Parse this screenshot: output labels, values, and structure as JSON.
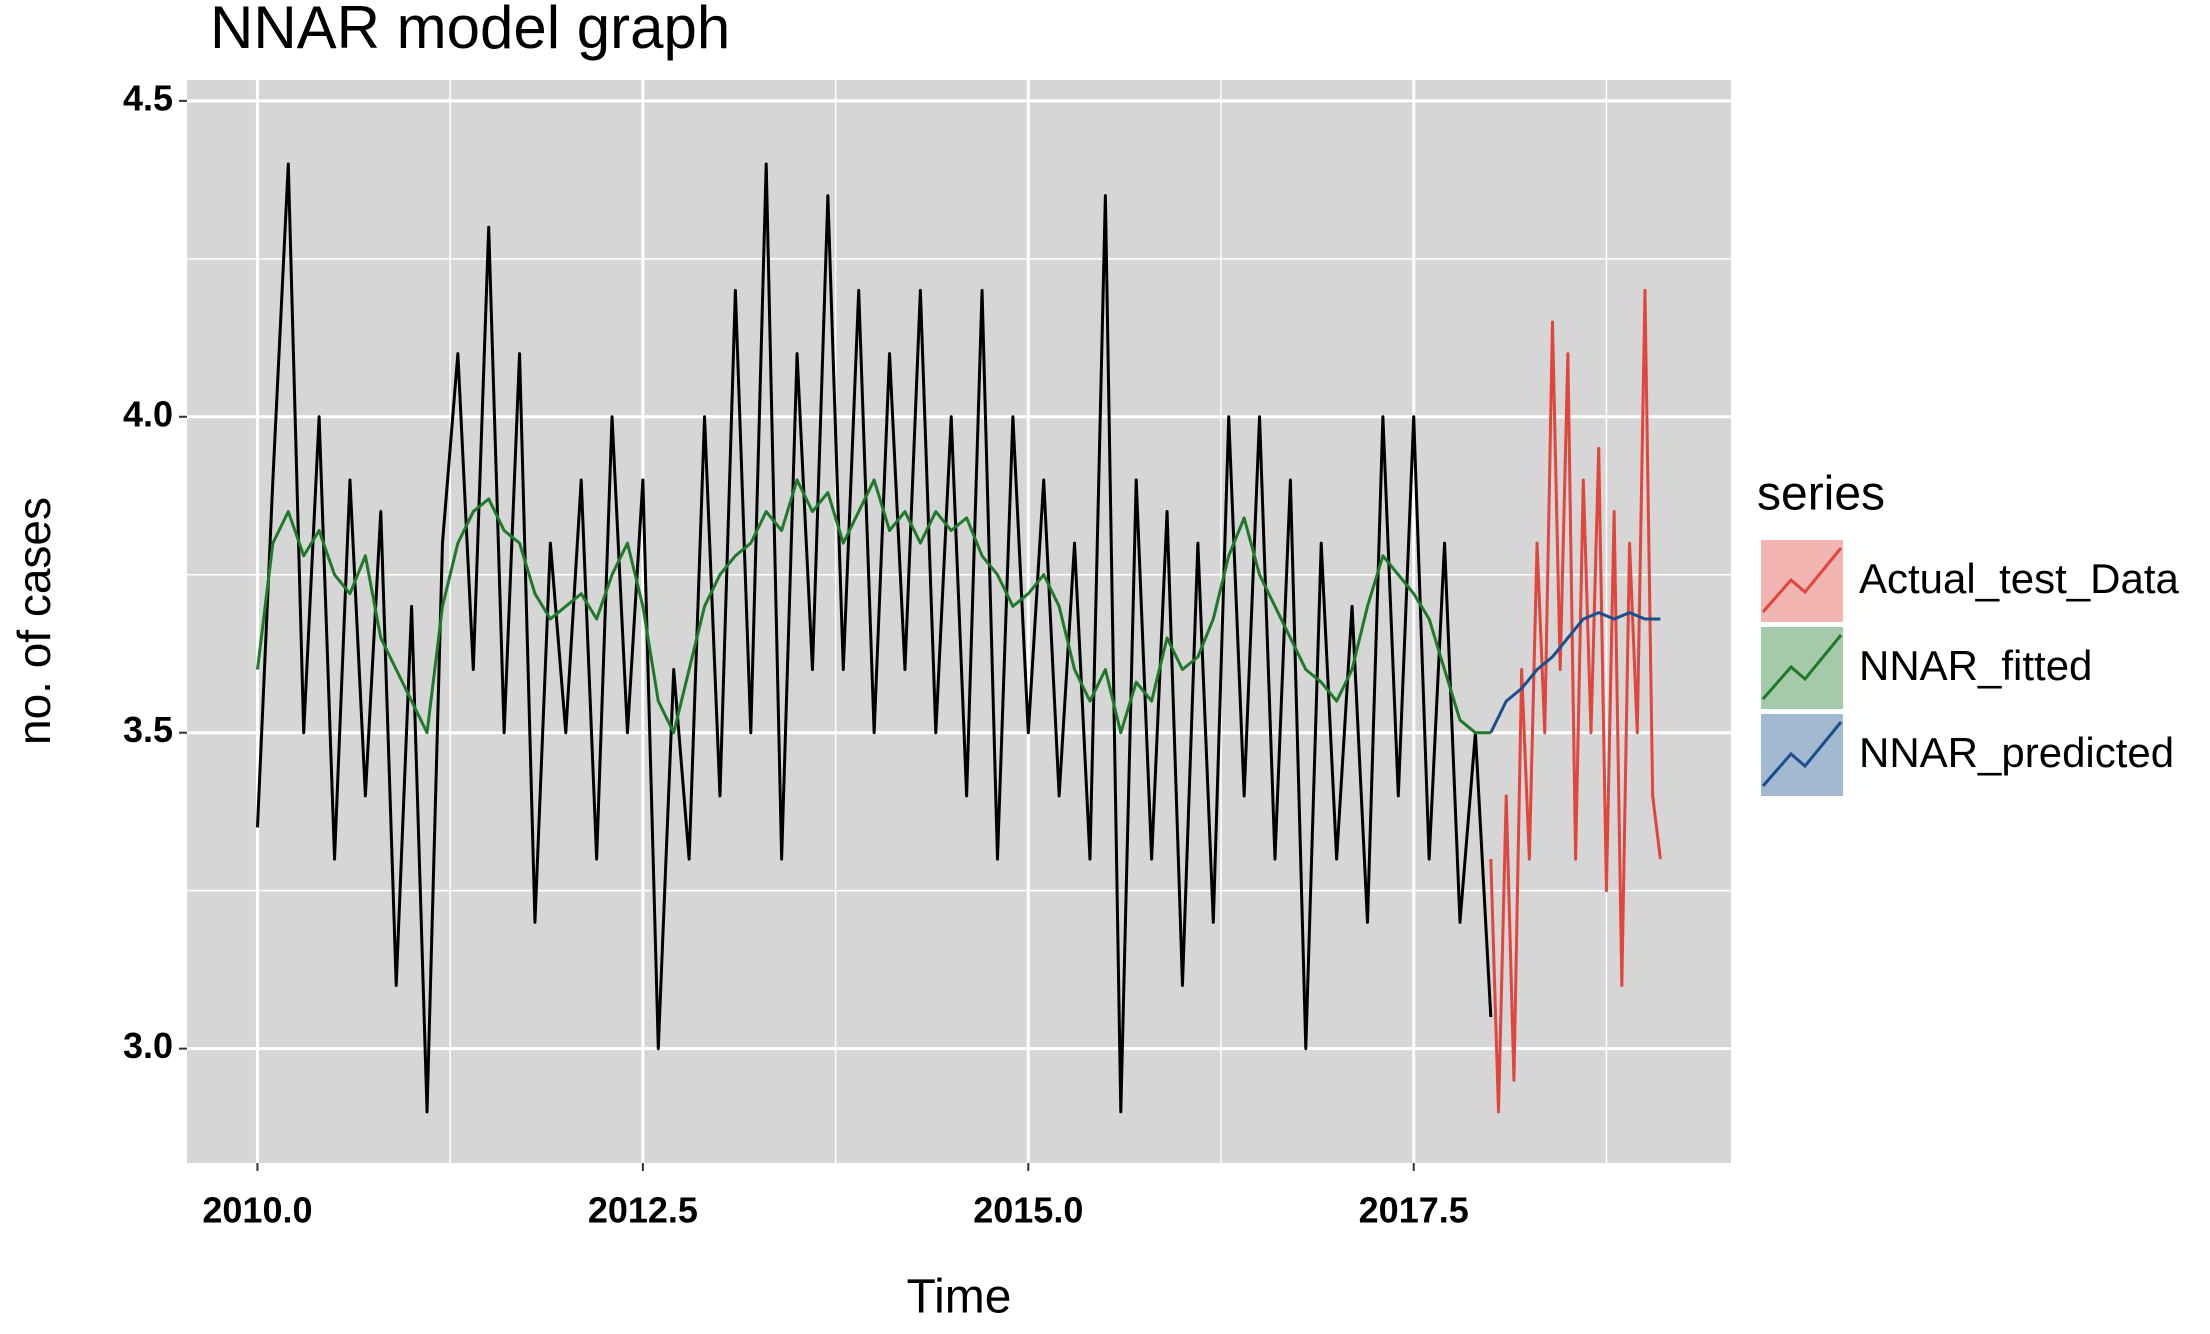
{
  "chart_data": {
    "type": "line",
    "title": "NNAR model graph",
    "x_label": "Time",
    "y_label": "no. of cases",
    "legend_title": "series",
    "legend_position": "right",
    "grid": true,
    "background": "#d6d6d6",
    "xlim": [
      2009.543,
      2019.558
    ],
    "ylim": [
      2.819,
      4.533
    ],
    "xticks": [
      {
        "value": 2010,
        "label": "2010.0"
      },
      2012.5,
      {
        "value": 2015,
        "label": "2015.0"
      },
      2017.5
    ],
    "yticks": [
      {
        "value": 3,
        "label": "3.0"
      },
      3.5,
      {
        "value": 4,
        "label": "4.0"
      },
      4.5
    ],
    "series": [
      {
        "color": "#000000",
        "x": [
          2010.0,
          2010.1,
          2010.2,
          2010.3,
          2010.4,
          2010.5,
          2010.6,
          2010.7,
          2010.8,
          2010.9,
          2011.0,
          2011.1,
          2011.2,
          2011.3,
          2011.4,
          2011.5,
          2011.6,
          2011.7,
          2011.8,
          2011.9,
          2012.0,
          2012.1,
          2012.2,
          2012.3,
          2012.4,
          2012.5,
          2012.6,
          2012.7,
          2012.8,
          2012.9,
          2013.0,
          2013.1,
          2013.2,
          2013.3,
          2013.4,
          2013.5,
          2013.6,
          2013.7,
          2013.8,
          2013.9,
          2014.0,
          2014.1,
          2014.2,
          2014.3,
          2014.4,
          2014.5,
          2014.6,
          2014.7,
          2014.8,
          2014.9,
          2015.0,
          2015.1,
          2015.2,
          2015.3,
          2015.4,
          2015.5,
          2015.6,
          2015.7,
          2015.8,
          2015.9,
          2016.0,
          2016.1,
          2016.2,
          2016.3,
          2016.4,
          2016.5,
          2016.6,
          2016.7,
          2016.8,
          2016.9,
          2017.0,
          2017.1,
          2017.2,
          2017.3,
          2017.4,
          2017.5,
          2017.6,
          2017.7,
          2017.8,
          2017.9,
          2018.0
        ],
        "values": [
          3.35,
          3.9,
          4.4,
          3.5,
          4.0,
          3.3,
          3.9,
          3.4,
          3.85,
          3.1,
          3.7,
          2.9,
          3.8,
          4.1,
          3.6,
          4.3,
          3.5,
          4.1,
          3.2,
          3.8,
          3.5,
          3.9,
          3.3,
          4.0,
          3.5,
          3.9,
          3.0,
          3.6,
          3.3,
          4.0,
          3.4,
          4.2,
          3.5,
          4.4,
          3.3,
          4.1,
          3.6,
          4.35,
          3.6,
          4.2,
          3.5,
          4.1,
          3.6,
          4.2,
          3.5,
          4.0,
          3.4,
          4.2,
          3.3,
          4.0,
          3.5,
          3.9,
          3.4,
          3.8,
          3.3,
          4.35,
          2.9,
          3.9,
          3.3,
          3.85,
          3.1,
          3.8,
          3.2,
          4.0,
          3.4,
          4.0,
          3.3,
          3.9,
          3.0,
          3.8,
          3.3,
          3.7,
          3.2,
          4.0,
          3.4,
          4.0,
          3.3,
          3.8,
          3.2,
          3.5,
          3.05
        ]
      },
      {
        "name": "Actual_test_Data",
        "color": "#e0463c",
        "x": [
          2018.0,
          2018.05,
          2018.1,
          2018.15,
          2018.2,
          2018.25,
          2018.3,
          2018.35,
          2018.4,
          2018.45,
          2018.5,
          2018.55,
          2018.6,
          2018.65,
          2018.7,
          2018.75,
          2018.8,
          2018.85,
          2018.9,
          2018.95,
          2019.0,
          2019.05,
          2019.1
        ],
        "values": [
          3.3,
          2.9,
          3.4,
          2.95,
          3.6,
          3.3,
          3.8,
          3.5,
          4.15,
          3.6,
          4.1,
          3.3,
          3.9,
          3.5,
          3.95,
          3.25,
          3.85,
          3.1,
          3.8,
          3.5,
          4.2,
          3.4,
          3.3
        ]
      },
      {
        "name": "NNAR_fitted",
        "color": "#1e7a2a",
        "x": [
          2010.0,
          2010.1,
          2010.2,
          2010.3,
          2010.4,
          2010.5,
          2010.6,
          2010.7,
          2010.8,
          2010.9,
          2011.0,
          2011.1,
          2011.2,
          2011.3,
          2011.4,
          2011.5,
          2011.6,
          2011.7,
          2011.8,
          2011.9,
          2012.0,
          2012.1,
          2012.2,
          2012.3,
          2012.4,
          2012.5,
          2012.6,
          2012.7,
          2012.8,
          2012.9,
          2013.0,
          2013.1,
          2013.2,
          2013.3,
          2013.4,
          2013.5,
          2013.6,
          2013.7,
          2013.8,
          2013.9,
          2014.0,
          2014.1,
          2014.2,
          2014.3,
          2014.4,
          2014.5,
          2014.6,
          2014.7,
          2014.8,
          2014.9,
          2015.0,
          2015.1,
          2015.2,
          2015.3,
          2015.4,
          2015.5,
          2015.6,
          2015.7,
          2015.8,
          2015.9,
          2016.0,
          2016.1,
          2016.2,
          2016.3,
          2016.4,
          2016.5,
          2016.6,
          2016.7,
          2016.8,
          2016.9,
          2017.0,
          2017.1,
          2017.2,
          2017.3,
          2017.4,
          2017.5,
          2017.6,
          2017.7,
          2017.8,
          2017.9,
          2018.0
        ],
        "values": [
          3.6,
          3.8,
          3.85,
          3.78,
          3.82,
          3.75,
          3.72,
          3.78,
          3.65,
          3.6,
          3.55,
          3.5,
          3.7,
          3.8,
          3.85,
          3.87,
          3.82,
          3.8,
          3.72,
          3.68,
          3.7,
          3.72,
          3.68,
          3.75,
          3.8,
          3.7,
          3.55,
          3.5,
          3.6,
          3.7,
          3.75,
          3.78,
          3.8,
          3.85,
          3.82,
          3.9,
          3.85,
          3.88,
          3.8,
          3.85,
          3.9,
          3.82,
          3.85,
          3.8,
          3.85,
          3.82,
          3.84,
          3.78,
          3.75,
          3.7,
          3.72,
          3.75,
          3.7,
          3.6,
          3.55,
          3.6,
          3.5,
          3.58,
          3.55,
          3.65,
          3.6,
          3.62,
          3.68,
          3.78,
          3.84,
          3.75,
          3.7,
          3.65,
          3.6,
          3.58,
          3.55,
          3.6,
          3.7,
          3.78,
          3.75,
          3.72,
          3.68,
          3.6,
          3.52,
          3.5,
          3.5
        ]
      },
      {
        "name": "NNAR_predicted",
        "color": "#1a4e8c",
        "x": [
          2018.0,
          2018.1,
          2018.2,
          2018.3,
          2018.4,
          2018.5,
          2018.6,
          2018.7,
          2018.8,
          2018.9,
          2019.0,
          2019.1
        ],
        "values": [
          3.5,
          3.55,
          3.57,
          3.6,
          3.62,
          3.65,
          3.68,
          3.69,
          3.68,
          3.69,
          3.68,
          3.68
        ]
      }
    ]
  }
}
